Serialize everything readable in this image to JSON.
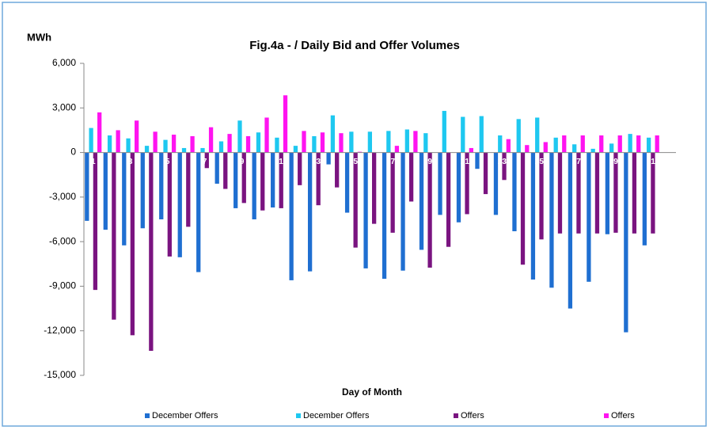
{
  "chart_data": {
    "type": "bar",
    "title": "Fig.4a - / Daily Bid and Offer Volumes",
    "y_label": "MWh",
    "x_label": "Day of Month",
    "categories": [
      "1",
      null,
      "3",
      null,
      "5",
      null,
      "7",
      null,
      "9",
      null,
      "11",
      null,
      "13",
      null,
      "15",
      null,
      "17",
      null,
      "19",
      null,
      "21",
      null,
      "23",
      null,
      "25",
      null,
      "27",
      null,
      "29",
      null,
      "31"
    ],
    "series": [
      {
        "name": "December Offers",
        "color": "#1f6fd1",
        "values": [
          -4600,
          -5200,
          -6250,
          -5100,
          -4500,
          -7050,
          -8050,
          -2100,
          -3750,
          -4500,
          -3700,
          -8600,
          -8000,
          -800,
          -4050,
          -7800,
          -8500,
          -7950,
          -6550,
          -4200,
          -4700,
          -1100,
          -4200,
          -5300,
          -8550,
          -9100,
          -10500,
          -8700,
          -5500,
          -12100,
          -6250
        ]
      },
      {
        "name": "December Offers",
        "color": "#1ec8f0",
        "values": [
          1650,
          1150,
          950,
          450,
          850,
          300,
          300,
          750,
          2150,
          1350,
          1000,
          450,
          1100,
          2500,
          1400,
          1400,
          1450,
          1550,
          1300,
          2800,
          2400,
          2450,
          1150,
          2250,
          2350,
          1000,
          550,
          250,
          600,
          1250,
          1000
        ]
      },
      {
        "name": "Offers",
        "color": "#7a1480",
        "values": [
          -9250,
          -11250,
          -12300,
          -13350,
          -7000,
          -5000,
          -1050,
          -2450,
          -3400,
          -3900,
          -3750,
          -2200,
          -3550,
          -2350,
          -6400,
          -4800,
          -5400,
          -3300,
          -7750,
          -6350,
          -4150,
          -2800,
          -1850,
          -7550,
          -5850,
          -5450,
          -5450,
          -5450,
          -5400,
          -5450,
          -5450
        ]
      },
      {
        "name": "Offers",
        "color": "#ff14f0",
        "values": [
          2700,
          1500,
          2150,
          1400,
          1200,
          1100,
          1700,
          1250,
          1100,
          2350,
          3850,
          1450,
          1350,
          1300,
          50,
          0,
          450,
          1450,
          0,
          0,
          300,
          0,
          900,
          500,
          700,
          1150,
          1150,
          1150,
          1150,
          1150,
          1150
        ]
      }
    ],
    "ylim": [
      -15000,
      6000
    ],
    "yticks": [
      {
        "value": 6000,
        "label": "6,000"
      },
      {
        "value": 3000,
        "label": "3,000"
      },
      0,
      {
        "value": -3000,
        "label": "-3,000"
      },
      {
        "value": -6000,
        "label": "-6,000"
      },
      {
        "value": -9000,
        "label": "-9,000"
      },
      {
        "value": -12000,
        "label": "-12,000"
      },
      {
        "value": -15000,
        "label": "-15,000"
      }
    ],
    "grid": false,
    "legend": "bottom"
  }
}
